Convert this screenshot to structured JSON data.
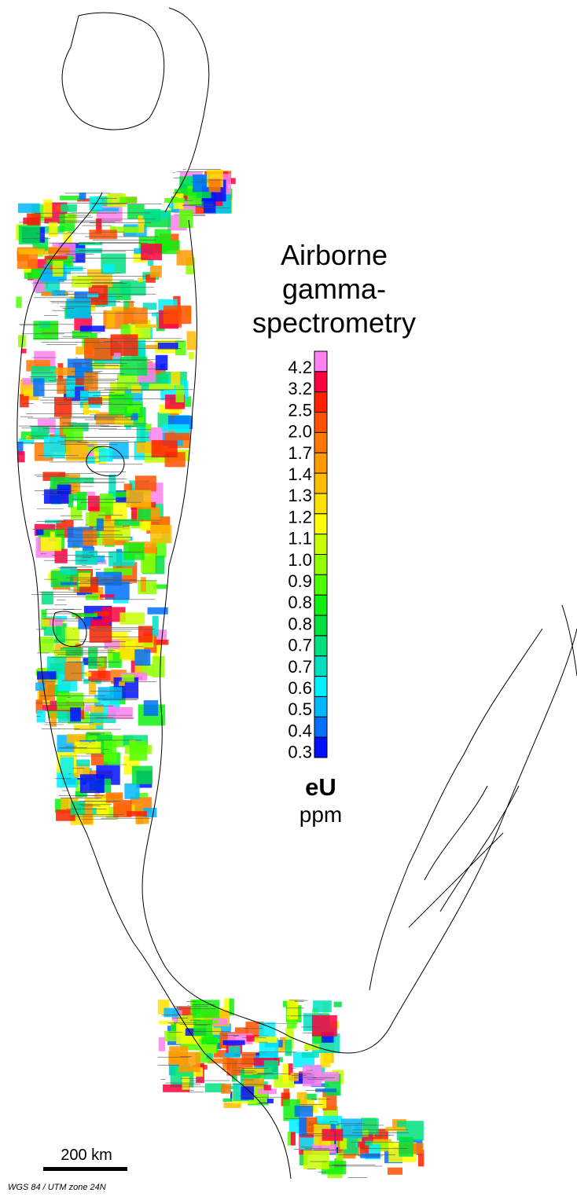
{
  "title_lines": [
    "Airborne",
    "gamma-",
    "spectrometry"
  ],
  "legend": {
    "labels": [
      "4.2",
      "3.2",
      "2.5",
      "2.0",
      "1.7",
      "1.4",
      "1.3",
      "1.2",
      "1.1",
      "1.0",
      "0.9",
      "0.8",
      "0.8",
      "0.7",
      "0.7",
      "0.6",
      "0.5",
      "0.4",
      "0.3"
    ],
    "colors": [
      "#ff80f0",
      "#ff0040",
      "#ff2000",
      "#ff5000",
      "#ff7800",
      "#ff9a00",
      "#ffbc00",
      "#ffe000",
      "#ffff00",
      "#c8ff00",
      "#90ff00",
      "#50ff00",
      "#10f010",
      "#00e040",
      "#00e080",
      "#00e0c0",
      "#00f0ff",
      "#00b8ff",
      "#0070ff",
      "#0010ff"
    ],
    "variable": "eU",
    "unit": "ppm"
  },
  "scale_bar": "200 km",
  "projection": "WGS 84 / UTM zone 24N"
}
